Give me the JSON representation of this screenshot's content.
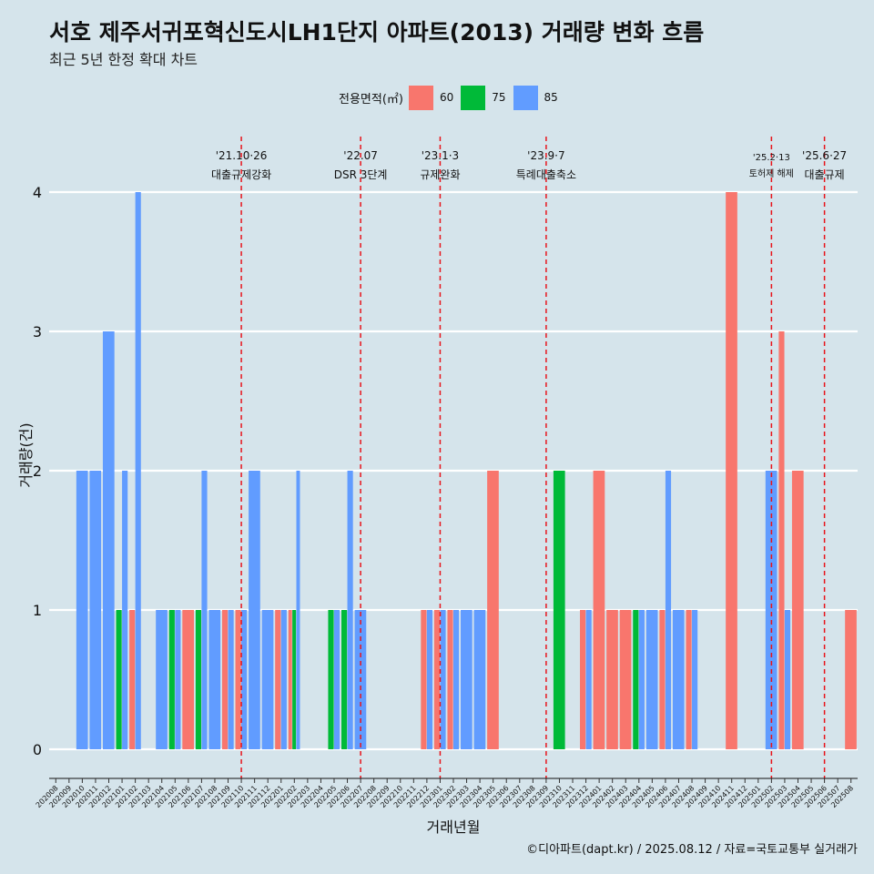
{
  "title": "서호 제주서귀포혁신도시LH1단지 아파트(2013) 거래량 변화 흐름",
  "subtitle": "최근 5년 한정 확대 차트",
  "credit": "©디아파트(dapt.kr) / 2025.08.12 / 자료=국토교통부 실거래가",
  "legend": {
    "title": "전용면적(㎡)",
    "items": [
      {
        "label": "60",
        "color": "#f8766d"
      },
      {
        "label": "75",
        "color": "#00ba38"
      },
      {
        "label": "85",
        "color": "#619cff"
      }
    ]
  },
  "chart_data": {
    "type": "bar",
    "xlabel": "거래년월",
    "ylabel": "거래량(건)",
    "ylim": [
      0,
      4
    ],
    "yticks": [
      0,
      1,
      2,
      3,
      4
    ],
    "grid": true,
    "legend_position": "top",
    "categories": [
      "202008",
      "202009",
      "202010",
      "202011",
      "202012",
      "202101",
      "202102",
      "202103",
      "202104",
      "202105",
      "202106",
      "202107",
      "202108",
      "202109",
      "202110",
      "202111",
      "202112",
      "202201",
      "202202",
      "202203",
      "202204",
      "202205",
      "202206",
      "202207",
      "202208",
      "202209",
      "202210",
      "202211",
      "202212",
      "202301",
      "202302",
      "202303",
      "202304",
      "202305",
      "202306",
      "202307",
      "202308",
      "202309",
      "202310",
      "202311",
      "202312",
      "202401",
      "202402",
      "202403",
      "202404",
      "202405",
      "202406",
      "202407",
      "202408",
      "202409",
      "202410",
      "202411",
      "202412",
      "202501",
      "202502",
      "202503",
      "202504",
      "202505",
      "202506",
      "202507",
      "202508"
    ],
    "series": [
      {
        "name": "60",
        "color": "#f8766d",
        "values": [
          0,
          0,
          0,
          0,
          0,
          0,
          1,
          0,
          0,
          0,
          1,
          0,
          0,
          1,
          1,
          0,
          0,
          1,
          1,
          0,
          0,
          0,
          0,
          0,
          0,
          0,
          0,
          0,
          1,
          1,
          1,
          0,
          0,
          2,
          0,
          0,
          0,
          0,
          0,
          0,
          1,
          2,
          1,
          1,
          0,
          0,
          1,
          0,
          1,
          0,
          0,
          4,
          0,
          0,
          0,
          3,
          2,
          0,
          0,
          0,
          1
        ]
      },
      {
        "name": "75",
        "color": "#00ba38",
        "values": [
          0,
          0,
          0,
          0,
          0,
          1,
          0,
          0,
          0,
          1,
          0,
          1,
          0,
          0,
          0,
          0,
          0,
          0,
          1,
          0,
          0,
          1,
          1,
          0,
          0,
          0,
          0,
          0,
          0,
          0,
          0,
          0,
          0,
          0,
          0,
          0,
          0,
          0,
          2,
          0,
          0,
          0,
          0,
          0,
          1,
          0,
          0,
          0,
          0,
          0,
          0,
          0,
          0,
          0,
          0,
          0,
          0,
          0,
          0,
          0,
          0
        ]
      },
      {
        "name": "85",
        "color": "#619cff",
        "values": [
          0,
          0,
          2,
          2,
          3,
          2,
          4,
          0,
          1,
          1,
          0,
          2,
          1,
          1,
          1,
          2,
          1,
          1,
          2,
          0,
          0,
          1,
          2,
          1,
          0,
          0,
          0,
          0,
          1,
          1,
          1,
          1,
          1,
          0,
          0,
          0,
          0,
          0,
          0,
          0,
          1,
          0,
          0,
          0,
          1,
          1,
          2,
          1,
          1,
          0,
          0,
          0,
          0,
          0,
          2,
          1,
          0,
          0,
          0,
          0,
          0
        ]
      }
    ],
    "events": [
      {
        "date": "202110",
        "line1": "'21.10·26",
        "line2": "대출규제강화"
      },
      {
        "date": "202207",
        "line1": "'22.07",
        "line2": "DSR 3단계"
      },
      {
        "date": "202301",
        "line1": "'23.1·3",
        "line2": "규제완화"
      },
      {
        "date": "202309",
        "line1": "'23.9·7",
        "line2": "특례대출축소"
      },
      {
        "date": "202502",
        "line1": "'25.2·13",
        "line2": "토허제 해제"
      },
      {
        "date": "202506",
        "line1": "'25.6·27",
        "line2": "대출규제"
      }
    ]
  }
}
